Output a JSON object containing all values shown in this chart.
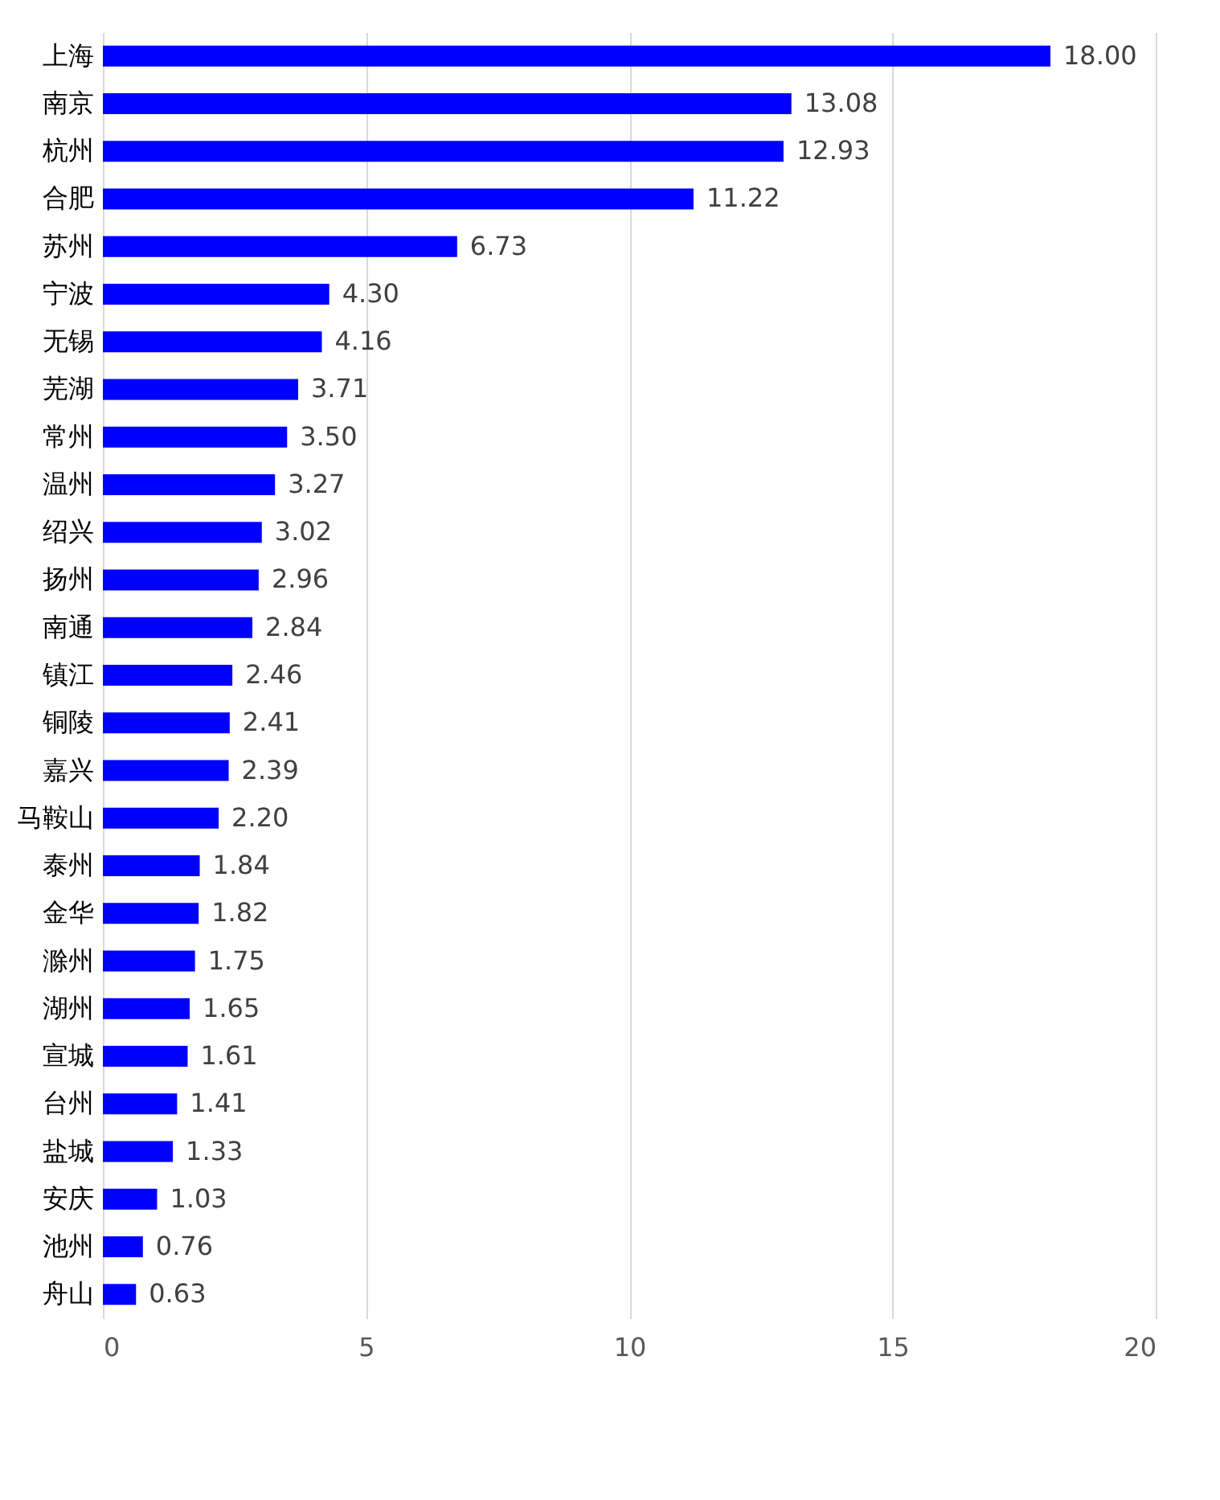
{
  "chart_data": {
    "type": "bar",
    "orientation": "horizontal",
    "categories": [
      "上海",
      "南京",
      "杭州",
      "合肥",
      "苏州",
      "宁波",
      "无锡",
      "芜湖",
      "常州",
      "温州",
      "绍兴",
      "扬州",
      "南通",
      "镇江",
      "铜陵",
      "嘉兴",
      "马鞍山",
      "泰州",
      "金华",
      "滁州",
      "湖州",
      "宣城",
      "台州",
      "盐城",
      "安庆",
      "池州",
      "舟山"
    ],
    "values": [
      18.0,
      13.08,
      12.93,
      11.22,
      6.73,
      4.3,
      4.16,
      3.71,
      3.5,
      3.27,
      3.02,
      2.96,
      2.84,
      2.46,
      2.41,
      2.39,
      2.2,
      1.84,
      1.82,
      1.75,
      1.65,
      1.61,
      1.41,
      1.33,
      1.03,
      0.76,
      0.63
    ],
    "value_labels": [
      "18.00",
      "13.08",
      "12.93",
      "11.22",
      "6.73",
      "4.30",
      "4.16",
      "3.71",
      "3.50",
      "3.27",
      "3.02",
      "2.96",
      "2.84",
      "2.46",
      "2.41",
      "2.39",
      "2.20",
      "1.84",
      "1.82",
      "1.75",
      "1.65",
      "1.61",
      "1.41",
      "1.33",
      "1.03",
      "0.76",
      "0.63"
    ],
    "color": "#0000ff",
    "xlim": [
      0,
      20
    ],
    "xticks": [
      0,
      5,
      10,
      15,
      20
    ],
    "grid": "x"
  }
}
